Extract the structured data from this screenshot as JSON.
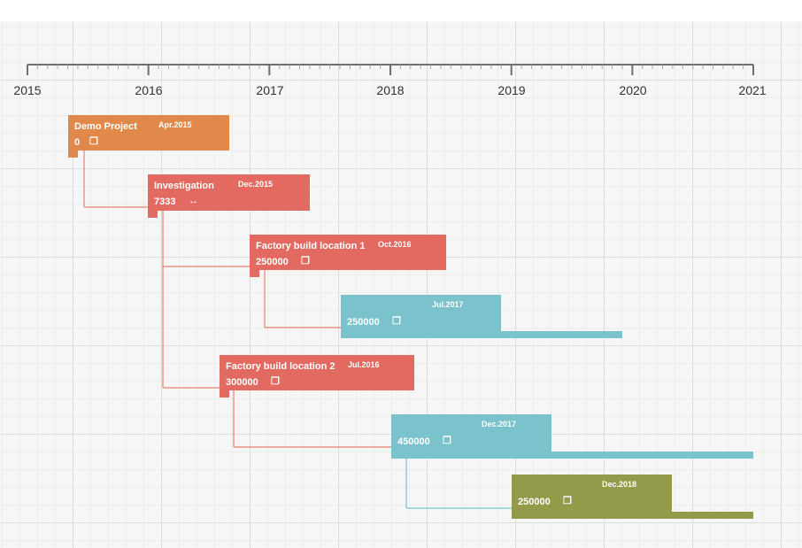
{
  "timeline": {
    "years": [
      "2015",
      "2016",
      "2017",
      "2018",
      "2019",
      "2020",
      "2021"
    ]
  },
  "tasks": [
    {
      "id": "demo",
      "name": "Demo Project",
      "date": "Apr.2015",
      "value": "0",
      "icon": "copy-icon",
      "color": "#e0894a"
    },
    {
      "id": "investigation",
      "name": "Investigation",
      "date": "Dec.2015",
      "value": "7333",
      "icon": "link-icon",
      "color": "#e26a60"
    },
    {
      "id": "factory1",
      "name": "Factory build location 1",
      "date": "Oct.2016",
      "value": "250000",
      "icon": "copy-icon",
      "color": "#e26a60"
    },
    {
      "id": "sub1",
      "name": "",
      "date": "Jul.2017",
      "value": "250000",
      "icon": "copy-icon",
      "color": "#7ac2cc"
    },
    {
      "id": "factory2",
      "name": "Factory build location 2",
      "date": "Jul.2016",
      "value": "300000",
      "icon": "copy-icon",
      "color": "#e26a60"
    },
    {
      "id": "sub2",
      "name": "",
      "date": "Dec.2017",
      "value": "450000",
      "icon": "copy-icon",
      "color": "#7ac2cc"
    },
    {
      "id": "sub3",
      "name": "",
      "date": "Dec.2018",
      "value": "250000",
      "icon": "copy-icon",
      "color": "#939a4a"
    }
  ],
  "colors": {
    "orange": "#e0894a",
    "red": "#e26a60",
    "teal": "#7ac2cc",
    "olive": "#939a4a",
    "connector": "#e88070"
  }
}
